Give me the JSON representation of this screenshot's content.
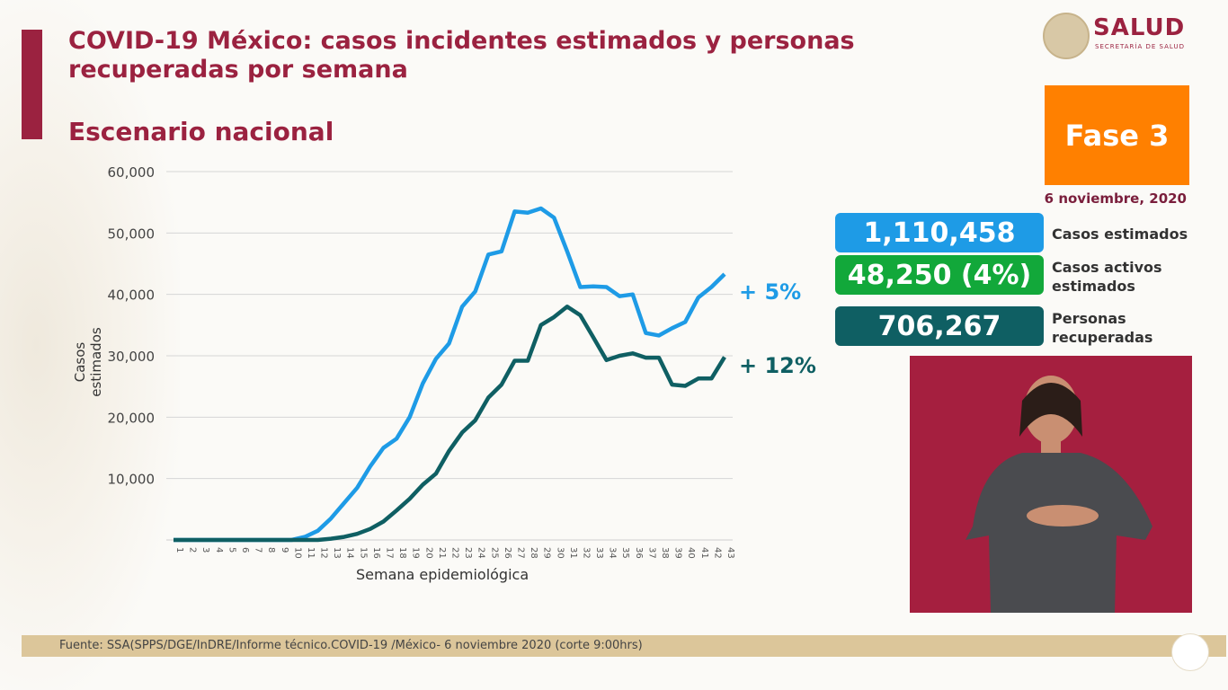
{
  "header": {
    "title": "COVID-19 México: casos incidentes estimados y personas recuperadas por semana",
    "subtitle": "Escenario nacional"
  },
  "logo": {
    "name": "SALUD",
    "sub": "SECRETARÍA DE SALUD"
  },
  "phase": {
    "label": "Fase 3",
    "color": "#ff8000"
  },
  "date": "6 noviembre, 2020",
  "stats": [
    {
      "value": "1,110,458",
      "label": "Casos estimados",
      "color": "#1e9be6"
    },
    {
      "value": "48,250 (4%)",
      "label": "Casos activos estimados",
      "color": "#12a83a"
    },
    {
      "value": "706,267",
      "label": "Personas recuperadas",
      "color": "#0f5f63"
    }
  ],
  "footer": {
    "source": "Fuente: SSA(SPPS/DGE/InDRE/Informe técnico.COVID-19 /México- 6 noviembre 2020 (corte 9:00hrs)"
  },
  "chart_data": {
    "type": "line",
    "xlabel": "Semana epidemiológica",
    "ylabel": "Casos estimados",
    "ylim": [
      0,
      60000
    ],
    "yticks": [
      "60,000",
      "50,000",
      "40,000",
      "30,000",
      "20,000",
      "10,000"
    ],
    "ytick_values": [
      60000,
      50000,
      40000,
      30000,
      20000,
      10000
    ],
    "grid": true,
    "x": [
      1,
      2,
      3,
      4,
      5,
      6,
      7,
      8,
      9,
      10,
      11,
      12,
      13,
      14,
      15,
      16,
      17,
      18,
      19,
      20,
      21,
      22,
      23,
      24,
      25,
      26,
      27,
      28,
      29,
      30,
      31,
      32,
      33,
      34,
      35,
      36,
      37,
      38,
      39,
      40,
      41,
      42,
      43
    ],
    "series": [
      {
        "color": "#1e9be6",
        "annotation": "+ 5%",
        "values": [
          0,
          0,
          0,
          0,
          0,
          0,
          0,
          0,
          0,
          0,
          500,
          1500,
          3500,
          6000,
          8500,
          12000,
          15000,
          16500,
          20000,
          25500,
          29500,
          32000,
          38000,
          40500,
          46500,
          47000,
          53500,
          53300,
          54000,
          52500,
          47000,
          41200,
          41300,
          41200,
          39700,
          40000,
          33700,
          33300,
          34500,
          35500,
          39500,
          41200,
          43300
        ]
      },
      {
        "color": "#0f5f63",
        "annotation": "+ 12%",
        "values": [
          0,
          0,
          0,
          0,
          0,
          0,
          0,
          0,
          0,
          0,
          0,
          0,
          200,
          500,
          1000,
          1800,
          3000,
          4800,
          6700,
          9000,
          10800,
          14500,
          17500,
          19500,
          23200,
          25300,
          29200,
          29200,
          35000,
          36300,
          38000,
          36600,
          33000,
          29300,
          30000,
          30400,
          29700,
          29700,
          25300,
          25100,
          26300,
          26300,
          29800
        ]
      }
    ]
  }
}
